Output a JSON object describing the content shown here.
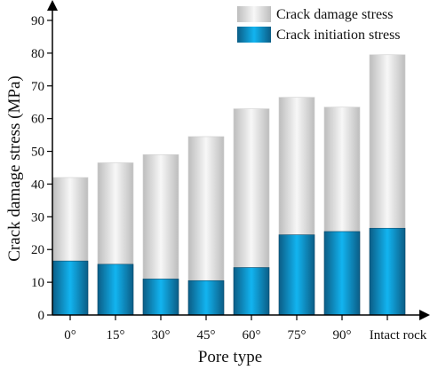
{
  "chart_data": {
    "type": "bar",
    "xlabel": "Pore type",
    "ylabel": "Crack damage stress (MPa)",
    "ylim": [
      0,
      90
    ],
    "yticks": [
      0,
      10,
      20,
      30,
      40,
      50,
      60,
      70,
      80,
      90
    ],
    "categories": [
      "0°",
      "15°",
      "30°",
      "45°",
      "60°",
      "75°",
      "90°",
      "Intact rock"
    ],
    "series": [
      {
        "name": "Crack damage stress",
        "values": [
          42,
          46.5,
          49,
          54.5,
          63,
          66.5,
          63.5,
          79.5
        ],
        "color": "#e6e6e6"
      },
      {
        "name": "Crack initiation stress",
        "values": [
          16.5,
          15.5,
          11,
          10.5,
          14.5,
          24.5,
          25.5,
          26.5
        ],
        "color": "#0a9ad6"
      }
    ],
    "legend": "top-right",
    "grid": false
  }
}
